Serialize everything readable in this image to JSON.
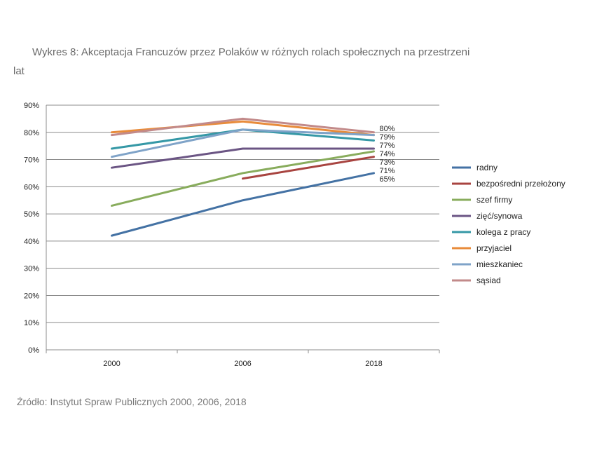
{
  "title_line1": "Wykres 8: Akceptacja Francuzów przez Polaków w różnych rolach społecznych na przestrzeni",
  "title_line2": "lat",
  "source": "Źródło: Instytut Spraw Publicznych 2000, 2006, 2018",
  "chart_data": {
    "type": "line",
    "title": "Wykres 8: Akceptacja Francuzów przez Polaków w różnych rolach społecznych na przestrzeni lat",
    "xlabel": "",
    "ylabel": "",
    "categories": [
      "2000",
      "2006",
      "2018"
    ],
    "ylim": [
      0,
      90
    ],
    "yticks": [
      "0%",
      "10%",
      "20%",
      "30%",
      "40%",
      "50%",
      "60%",
      "70%",
      "80%",
      "90%"
    ],
    "grid": true,
    "legend_position": "right",
    "end_labels": [
      "80%",
      "79%",
      "77%",
      "74%",
      "73%",
      "71%",
      "65%"
    ],
    "series": [
      {
        "name": "radny",
        "color": "#4472A4",
        "values": [
          42,
          55,
          65
        ]
      },
      {
        "name": "bezpośredni przełożony",
        "color": "#A84440",
        "values": [
          null,
          63,
          71
        ]
      },
      {
        "name": "szef firmy",
        "color": "#88AC5C",
        "values": [
          53,
          65,
          73
        ]
      },
      {
        "name": "zięć/synowa",
        "color": "#6B5584",
        "values": [
          67,
          74,
          74
        ]
      },
      {
        "name": "kolega z pracy",
        "color": "#3598A6",
        "values": [
          74,
          81,
          77
        ]
      },
      {
        "name": "przyjaciel",
        "color": "#E88B3A",
        "values": [
          80,
          84,
          79
        ]
      },
      {
        "name": "mieszkaniec",
        "color": "#7FA3C8",
        "values": [
          71,
          81,
          79
        ]
      },
      {
        "name": "sąsiad",
        "color": "#C28A8A",
        "values": [
          79,
          85,
          80
        ]
      }
    ]
  }
}
